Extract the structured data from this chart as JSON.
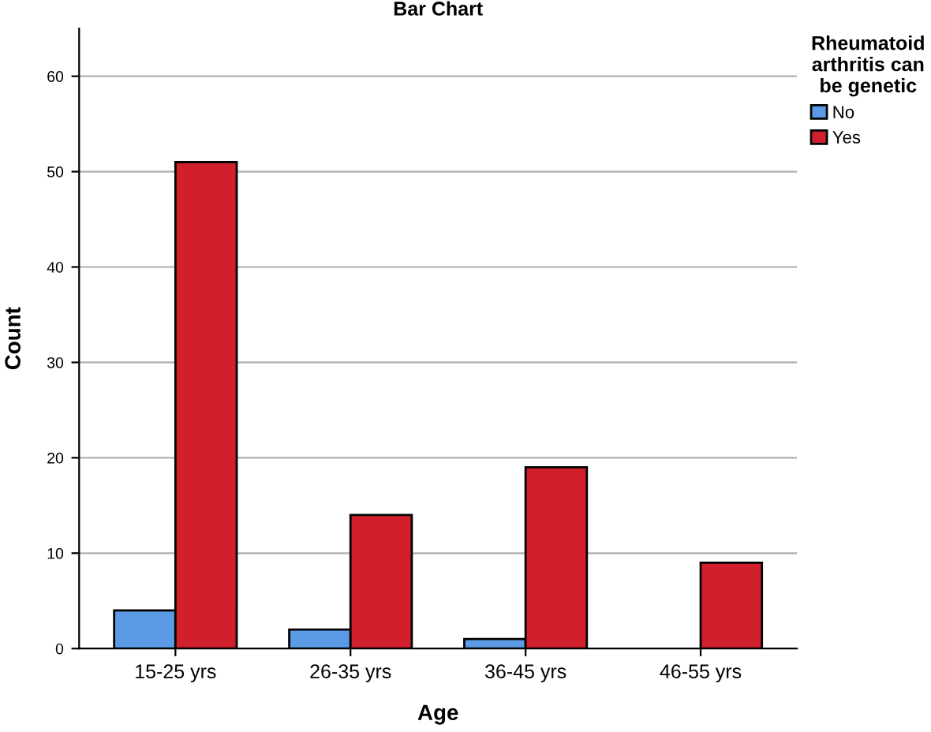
{
  "chart_data": {
    "type": "bar",
    "title": "Bar Chart",
    "xlabel": "Age",
    "ylabel": "Count",
    "legend_title": "Rheumatoid\narthritis can\nbe genetic",
    "categories": [
      "15-25 yrs",
      "26-35 yrs",
      "36-45 yrs",
      "46-55 yrs"
    ],
    "series": [
      {
        "name": "No",
        "color": "#5b9be6",
        "values": [
          4,
          2,
          1,
          null
        ]
      },
      {
        "name": "Yes",
        "color": "#d11f2c",
        "values": [
          51,
          14,
          19,
          9
        ]
      }
    ],
    "ylim": [
      0,
      65
    ],
    "yticks": [
      0,
      10,
      20,
      30,
      40,
      50,
      60
    ],
    "grid": "y",
    "legend": "top right"
  }
}
